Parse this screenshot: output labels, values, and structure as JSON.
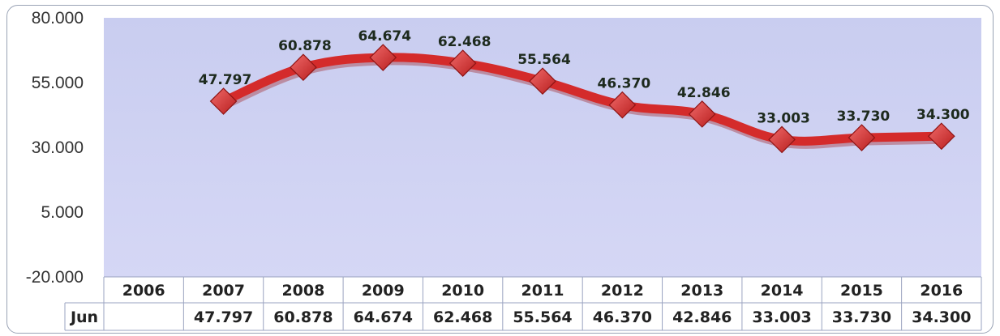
{
  "chart_data": {
    "type": "line",
    "title": "",
    "xlabel": "",
    "ylabel": "",
    "categories": [
      "2006",
      "2007",
      "2008",
      "2009",
      "2010",
      "2011",
      "2012",
      "2013",
      "2014",
      "2015",
      "2016"
    ],
    "series": [
      {
        "name": "Jun",
        "values": [
          null,
          47797,
          60878,
          64674,
          62468,
          55564,
          46370,
          42846,
          33003,
          33730,
          34300
        ],
        "labels": [
          "",
          "47.797",
          "60.878",
          "64.674",
          "62.468",
          "55.564",
          "46.370",
          "42.846",
          "33.003",
          "33.730",
          "34.300"
        ],
        "color": "#d42b2b",
        "marker": "diamond"
      }
    ],
    "yticks": [
      {
        "value": 80000,
        "label": "80.000"
      },
      {
        "value": 55000,
        "label": "55.000"
      },
      {
        "value": 30000,
        "label": "30.000"
      },
      {
        "value": 5000,
        "label": "5.000"
      },
      {
        "value": -20000,
        "label": "-20.000"
      }
    ],
    "ylim": [
      -20000,
      80000
    ],
    "grid": false,
    "legend": "data-table",
    "data_table": true,
    "plot_background": "#c9cdf0"
  }
}
